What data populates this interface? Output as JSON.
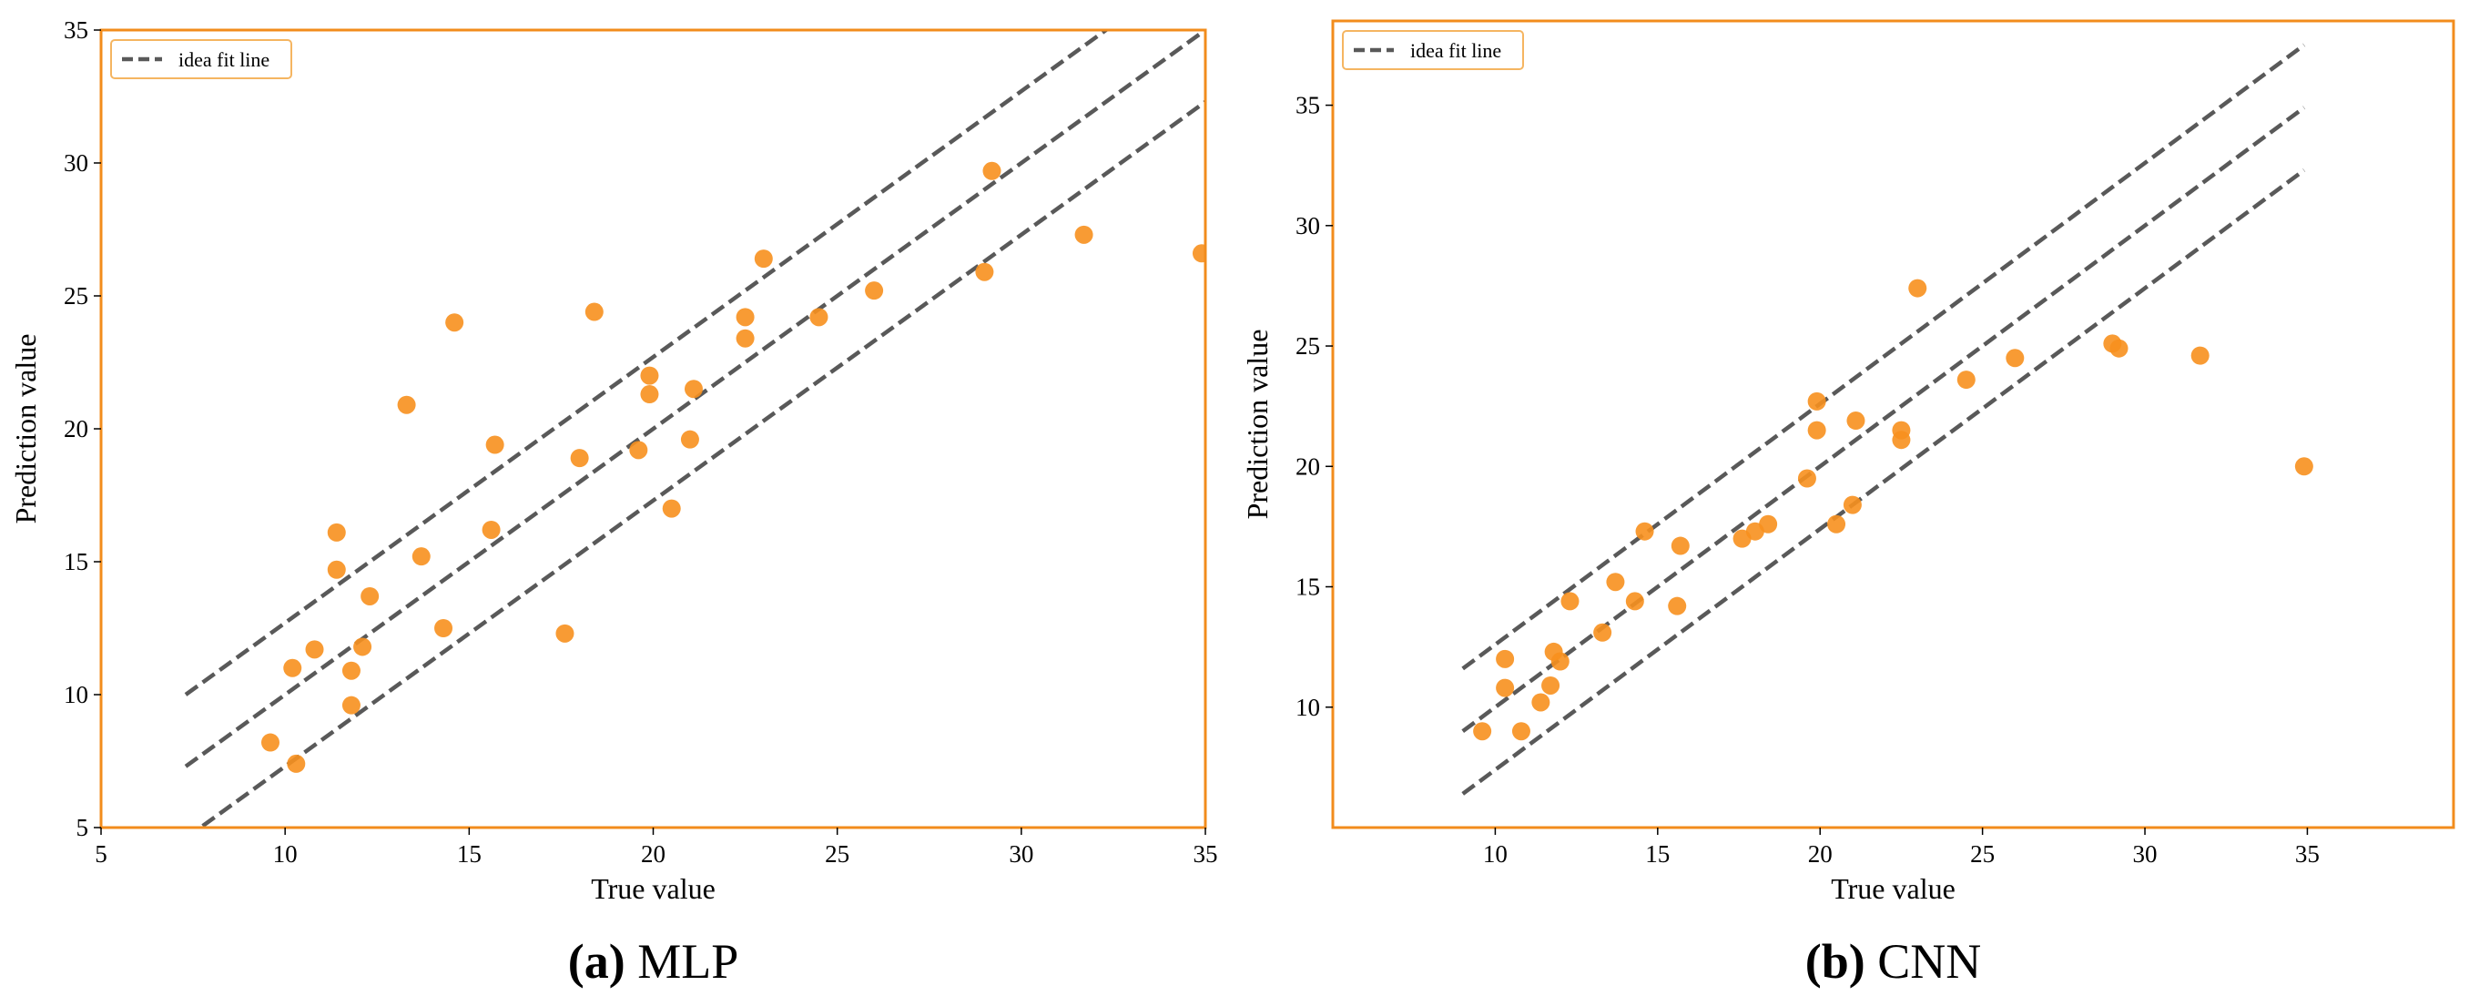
{
  "colors": {
    "frame": "#f28c1c",
    "point": "#f7901e",
    "line": "#595959",
    "legend_border": "#f5b561"
  },
  "chart_data": [
    {
      "type": "scatter",
      "caption_letter": "(a)",
      "caption_text": " MLP",
      "xlabel": "True value",
      "ylabel": "Prediction value",
      "xlim": [
        5,
        35
      ],
      "ylim": [
        5,
        35
      ],
      "xticks": [
        5,
        10,
        15,
        20,
        25,
        30,
        35
      ],
      "yticks": [
        5,
        10,
        15,
        20,
        25,
        30,
        35
      ],
      "grid": false,
      "legend": {
        "label": "idea fit line",
        "position": "top-left"
      },
      "fit_lines": {
        "x_range": [
          7.3,
          35
        ],
        "offsets": [
          2.7,
          0,
          -2.7
        ]
      },
      "points": [
        [
          9.6,
          8.2
        ],
        [
          10.3,
          7.4
        ],
        [
          10.2,
          11.0
        ],
        [
          10.8,
          11.7
        ],
        [
          11.4,
          14.7
        ],
        [
          11.4,
          16.1
        ],
        [
          11.8,
          10.9
        ],
        [
          11.8,
          9.6
        ],
        [
          12.1,
          11.8
        ],
        [
          12.3,
          13.7
        ],
        [
          13.3,
          20.9
        ],
        [
          13.7,
          15.2
        ],
        [
          14.3,
          12.5
        ],
        [
          14.6,
          24.0
        ],
        [
          15.6,
          16.2
        ],
        [
          15.7,
          19.4
        ],
        [
          17.6,
          12.3
        ],
        [
          18.0,
          18.9
        ],
        [
          18.4,
          24.4
        ],
        [
          19.6,
          19.2
        ],
        [
          19.9,
          22.0
        ],
        [
          19.9,
          21.3
        ],
        [
          20.5,
          17.0
        ],
        [
          21.0,
          19.6
        ],
        [
          21.1,
          21.5
        ],
        [
          22.5,
          24.2
        ],
        [
          22.5,
          23.4
        ],
        [
          23.0,
          26.4
        ],
        [
          24.5,
          24.2
        ],
        [
          26.0,
          25.2
        ],
        [
          29.0,
          25.9
        ],
        [
          29.2,
          29.7
        ],
        [
          31.7,
          27.3
        ],
        [
          34.9,
          26.6
        ]
      ]
    },
    {
      "type": "scatter",
      "caption_letter": "(b)",
      "caption_text": " CNN",
      "xlabel": "True value",
      "ylabel": "Prediction value",
      "xlim": [
        5,
        39.5
      ],
      "ylim": [
        5,
        38.5
      ],
      "xticks": [
        10,
        15,
        20,
        25,
        30,
        35
      ],
      "yticks": [
        10,
        15,
        20,
        25,
        30,
        35
      ],
      "grid": false,
      "legend": {
        "label": "idea fit line",
        "position": "top-left"
      },
      "fit_lines": {
        "x_range": [
          9.0,
          34.9
        ],
        "offsets": [
          2.6,
          0,
          -2.6
        ]
      },
      "points": [
        [
          9.6,
          9.0
        ],
        [
          10.3,
          12.0
        ],
        [
          10.3,
          10.8
        ],
        [
          10.8,
          9.0
        ],
        [
          11.4,
          10.2
        ],
        [
          11.7,
          10.9
        ],
        [
          11.8,
          12.3
        ],
        [
          12.0,
          11.9
        ],
        [
          12.3,
          14.4
        ],
        [
          13.3,
          13.1
        ],
        [
          13.7,
          15.2
        ],
        [
          14.3,
          14.4
        ],
        [
          14.6,
          17.3
        ],
        [
          15.6,
          14.2
        ],
        [
          15.7,
          16.7
        ],
        [
          17.6,
          17.0
        ],
        [
          18.0,
          17.3
        ],
        [
          18.4,
          17.6
        ],
        [
          19.6,
          19.5
        ],
        [
          19.9,
          22.7
        ],
        [
          19.9,
          21.5
        ],
        [
          20.5,
          17.6
        ],
        [
          21.0,
          18.4
        ],
        [
          21.1,
          21.9
        ],
        [
          22.5,
          21.5
        ],
        [
          22.5,
          21.1
        ],
        [
          23.0,
          27.4
        ],
        [
          24.5,
          23.6
        ],
        [
          26.0,
          24.5
        ],
        [
          29.0,
          25.1
        ],
        [
          29.2,
          24.9
        ],
        [
          31.7,
          24.6
        ],
        [
          34.9,
          20.0
        ]
      ]
    }
  ]
}
